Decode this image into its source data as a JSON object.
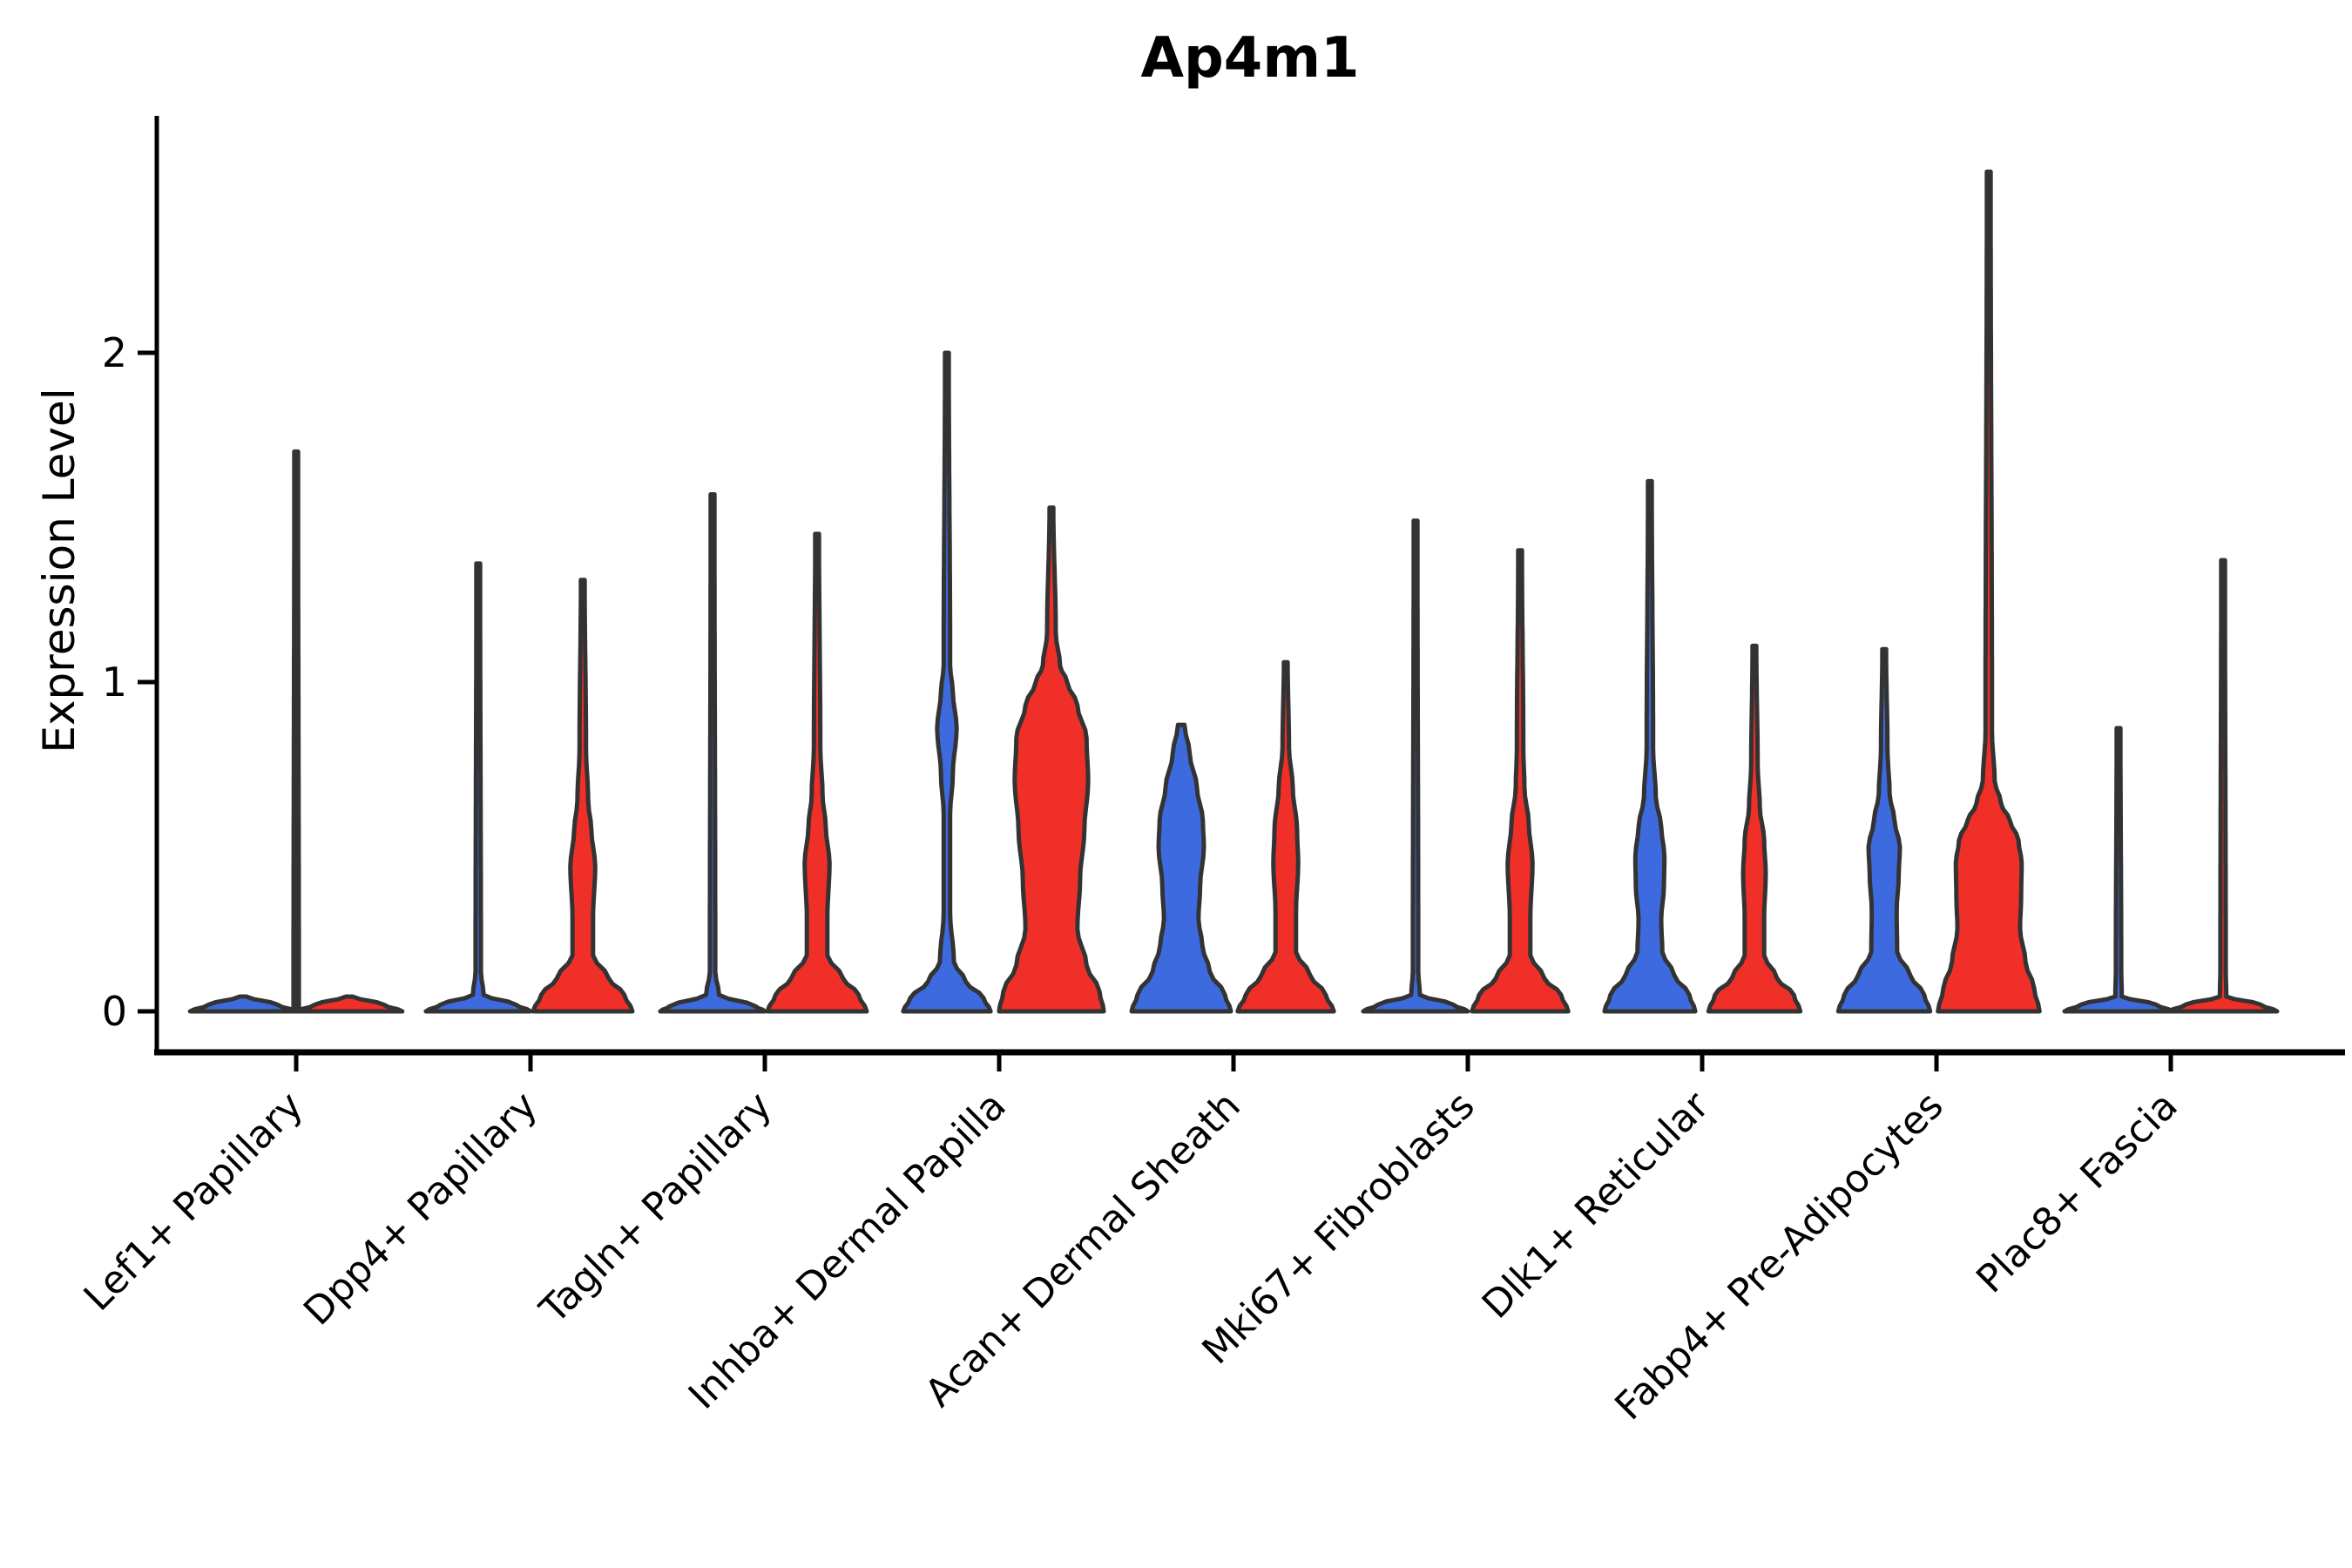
{
  "title": "Ap4m1",
  "ylabel": "Expression Level",
  "chart_data": {
    "type": "violin",
    "title": "Ap4m1",
    "xlabel": "",
    "ylabel": "Expression Level",
    "ylim": [
      -0.12,
      2.72
    ],
    "yticks": [
      0,
      1,
      2
    ],
    "grid": false,
    "legend": "none",
    "colors": {
      "blue": "#3D6BDF",
      "red": "#F03028",
      "outline": "#333333"
    },
    "categories": [
      "Lef1+ Papillary",
      "Dpp4+ Papillary",
      "Tagln+ Papillary",
      "Inhba+ Dermal Papilla",
      "Acan+ Dermal Sheath",
      "Mki67+ Fibroblasts",
      "Dlk1+ Reticular",
      "Fabp4+ Pre-Adipocytes",
      "Plac8+ Fascia"
    ],
    "groups": [
      {
        "category": "Lef1+ Papillary",
        "violins": [
          {
            "color": "blue",
            "offset": -61,
            "max": 0.045,
            "shape": "flat-zero",
            "profile": [
              [
                0,
                0.98
              ],
              [
                0.02,
                0.64
              ],
              [
                0.045,
                0.06
              ]
            ]
          },
          {
            "color": "red",
            "offset": 61,
            "max": 0.045,
            "shape": "flat-zero",
            "profile": [
              [
                0,
                0.98
              ],
              [
                0.02,
                0.64
              ],
              [
                0.045,
                0.06
              ]
            ]
          },
          {
            "color": "outline",
            "offset": 0,
            "max": 1.7,
            "shape": "tail-spike",
            "profile": [
              [
                0,
                0.05
              ],
              [
                1.7,
                0.035
              ]
            ]
          }
        ]
      },
      {
        "category": "Dpp4+ Papillary",
        "violins": [
          {
            "color": "blue",
            "offset": -60,
            "max": 1.36,
            "shape": "flat-zero-spike",
            "profile": [
              [
                0,
                0.97
              ],
              [
                0.02,
                0.7
              ],
              [
                0.05,
                0.1
              ],
              [
                0.12,
                0.05
              ],
              [
                1.36,
                0.035
              ]
            ]
          },
          {
            "color": "red",
            "offset": 60,
            "max": 1.31,
            "shape": "dome-bulge-spike",
            "profile": [
              [
                0,
                0.92
              ],
              [
                0.05,
                0.77
              ],
              [
                0.1,
                0.48
              ],
              [
                0.17,
                0.19
              ],
              [
                0.28,
                0.19
              ],
              [
                0.44,
                0.23
              ],
              [
                0.55,
                0.16
              ],
              [
                0.64,
                0.1
              ],
              [
                0.8,
                0.06
              ],
              [
                1.31,
                0.035
              ]
            ]
          }
        ]
      },
      {
        "category": "Tagln+ Papillary",
        "violins": [
          {
            "color": "blue",
            "offset": -60,
            "max": 1.57,
            "shape": "flat-zero-spike",
            "profile": [
              [
                0,
                0.97
              ],
              [
                0.015,
                0.8
              ],
              [
                0.05,
                0.12
              ],
              [
                0.12,
                0.05
              ],
              [
                1.57,
                0.035
              ]
            ]
          },
          {
            "color": "red",
            "offset": 60,
            "max": 1.45,
            "shape": "dome-bulge-spike",
            "profile": [
              [
                0,
                0.92
              ],
              [
                0.05,
                0.77
              ],
              [
                0.1,
                0.48
              ],
              [
                0.17,
                0.19
              ],
              [
                0.28,
                0.19
              ],
              [
                0.45,
                0.23
              ],
              [
                0.56,
                0.16
              ],
              [
                0.66,
                0.1
              ],
              [
                0.8,
                0.06
              ],
              [
                1.45,
                0.035
              ]
            ]
          }
        ]
      },
      {
        "category": "Inhba+ Dermal Papilla",
        "violins": [
          {
            "color": "blue",
            "offset": -60,
            "max": 2.0,
            "shape": "dome-highbulge-spike",
            "profile": [
              [
                0,
                0.81
              ],
              [
                0.04,
                0.68
              ],
              [
                0.09,
                0.35
              ],
              [
                0.15,
                0.13
              ],
              [
                0.3,
                0.06
              ],
              [
                0.6,
                0.06
              ],
              [
                0.72,
                0.11
              ],
              [
                0.86,
                0.18
              ],
              [
                0.97,
                0.11
              ],
              [
                1.05,
                0.06
              ],
              [
                2.0,
                0.035
              ]
            ]
          },
          {
            "color": "red",
            "offset": 60,
            "max": 1.53,
            "shape": "wide-body-spike",
            "profile": [
              [
                0,
                0.97
              ],
              [
                0.06,
                0.89
              ],
              [
                0.14,
                0.65
              ],
              [
                0.25,
                0.48
              ],
              [
                0.4,
                0.53
              ],
              [
                0.55,
                0.61
              ],
              [
                0.7,
                0.68
              ],
              [
                0.83,
                0.65
              ],
              [
                0.93,
                0.48
              ],
              [
                1.0,
                0.29
              ],
              [
                1.05,
                0.16
              ],
              [
                1.15,
                0.08
              ],
              [
                1.53,
                0.035
              ]
            ]
          }
        ]
      },
      {
        "category": "Acan+ Dermal Sheath",
        "violins": [
          {
            "color": "blue",
            "offset": -60,
            "max": 0.87,
            "shape": "bottle-body",
            "profile": [
              [
                0,
                0.92
              ],
              [
                0.05,
                0.81
              ],
              [
                0.12,
                0.53
              ],
              [
                0.2,
                0.39
              ],
              [
                0.28,
                0.32
              ],
              [
                0.38,
                0.35
              ],
              [
                0.5,
                0.42
              ],
              [
                0.58,
                0.4
              ],
              [
                0.68,
                0.29
              ],
              [
                0.78,
                0.16
              ],
              [
                0.87,
                0.06
              ]
            ]
          },
          {
            "color": "red",
            "offset": 60,
            "max": 1.06,
            "shape": "dome-bulge-spike",
            "profile": [
              [
                0,
                0.89
              ],
              [
                0.05,
                0.74
              ],
              [
                0.11,
                0.45
              ],
              [
                0.18,
                0.19
              ],
              [
                0.3,
                0.19
              ],
              [
                0.45,
                0.23
              ],
              [
                0.55,
                0.21
              ],
              [
                0.68,
                0.13
              ],
              [
                0.8,
                0.06
              ],
              [
                1.06,
                0.035
              ]
            ]
          }
        ]
      },
      {
        "category": "Mki67+ Fibroblasts",
        "violins": [
          {
            "color": "blue",
            "offset": -60,
            "max": 1.49,
            "shape": "flat-zero-spike",
            "profile": [
              [
                0,
                0.97
              ],
              [
                0.02,
                0.7
              ],
              [
                0.05,
                0.08
              ],
              [
                0.12,
                0.05
              ],
              [
                1.49,
                0.035
              ]
            ]
          },
          {
            "color": "red",
            "offset": 60,
            "max": 1.4,
            "shape": "dome-bulge-spike",
            "profile": [
              [
                0,
                0.89
              ],
              [
                0.05,
                0.76
              ],
              [
                0.1,
                0.45
              ],
              [
                0.17,
                0.19
              ],
              [
                0.28,
                0.19
              ],
              [
                0.45,
                0.23
              ],
              [
                0.57,
                0.16
              ],
              [
                0.68,
                0.08
              ],
              [
                0.8,
                0.06
              ],
              [
                1.4,
                0.035
              ]
            ]
          }
        ]
      },
      {
        "category": "Dlk1+ Reticular",
        "violins": [
          {
            "color": "blue",
            "offset": -60,
            "max": 1.61,
            "shape": "dome-bulge-spike",
            "profile": [
              [
                0,
                0.84
              ],
              [
                0.05,
                0.73
              ],
              [
                0.11,
                0.45
              ],
              [
                0.18,
                0.23
              ],
              [
                0.28,
                0.21
              ],
              [
                0.38,
                0.26
              ],
              [
                0.47,
                0.27
              ],
              [
                0.56,
                0.21
              ],
              [
                0.65,
                0.11
              ],
              [
                0.8,
                0.06
              ],
              [
                1.61,
                0.035
              ]
            ]
          },
          {
            "color": "red",
            "offset": 60,
            "max": 1.11,
            "shape": "dome-bulge-spike",
            "profile": [
              [
                0,
                0.85
              ],
              [
                0.05,
                0.73
              ],
              [
                0.1,
                0.42
              ],
              [
                0.17,
                0.18
              ],
              [
                0.28,
                0.18
              ],
              [
                0.42,
                0.21
              ],
              [
                0.52,
                0.18
              ],
              [
                0.62,
                0.1
              ],
              [
                0.75,
                0.06
              ],
              [
                1.11,
                0.035
              ]
            ]
          }
        ]
      },
      {
        "category": "Fabp4+ Pre-Adipocytes",
        "violins": [
          {
            "color": "blue",
            "offset": -60,
            "max": 1.1,
            "shape": "dome-bulge-spike",
            "profile": [
              [
                0,
                0.85
              ],
              [
                0.05,
                0.74
              ],
              [
                0.11,
                0.48
              ],
              [
                0.18,
                0.24
              ],
              [
                0.3,
                0.23
              ],
              [
                0.42,
                0.27
              ],
              [
                0.5,
                0.29
              ],
              [
                0.58,
                0.19
              ],
              [
                0.66,
                0.1
              ],
              [
                0.8,
                0.06
              ],
              [
                1.1,
                0.035
              ]
            ]
          },
          {
            "color": "red",
            "offset": 60,
            "max": 2.55,
            "shape": "wide-body-tall-spike",
            "profile": [
              [
                0,
                0.94
              ],
              [
                0.07,
                0.84
              ],
              [
                0.15,
                0.68
              ],
              [
                0.25,
                0.58
              ],
              [
                0.35,
                0.6
              ],
              [
                0.45,
                0.61
              ],
              [
                0.52,
                0.55
              ],
              [
                0.58,
                0.39
              ],
              [
                0.63,
                0.23
              ],
              [
                0.7,
                0.11
              ],
              [
                0.85,
                0.06
              ],
              [
                2.55,
                0.035
              ]
            ]
          }
        ]
      },
      {
        "category": "Plac8+ Fascia",
        "violins": [
          {
            "color": "blue",
            "offset": -60,
            "max": 0.86,
            "shape": "flat-zero-spike",
            "profile": [
              [
                0,
                1.0
              ],
              [
                0.02,
                0.7
              ],
              [
                0.045,
                0.06
              ],
              [
                0.12,
                0.05
              ],
              [
                0.86,
                0.035
              ]
            ]
          },
          {
            "color": "red",
            "offset": 60,
            "max": 1.37,
            "shape": "flat-zero-spike",
            "profile": [
              [
                0,
                1.0
              ],
              [
                0.02,
                0.7
              ],
              [
                0.045,
                0.06
              ],
              [
                0.12,
                0.05
              ],
              [
                1.37,
                0.035
              ]
            ]
          }
        ]
      }
    ]
  }
}
